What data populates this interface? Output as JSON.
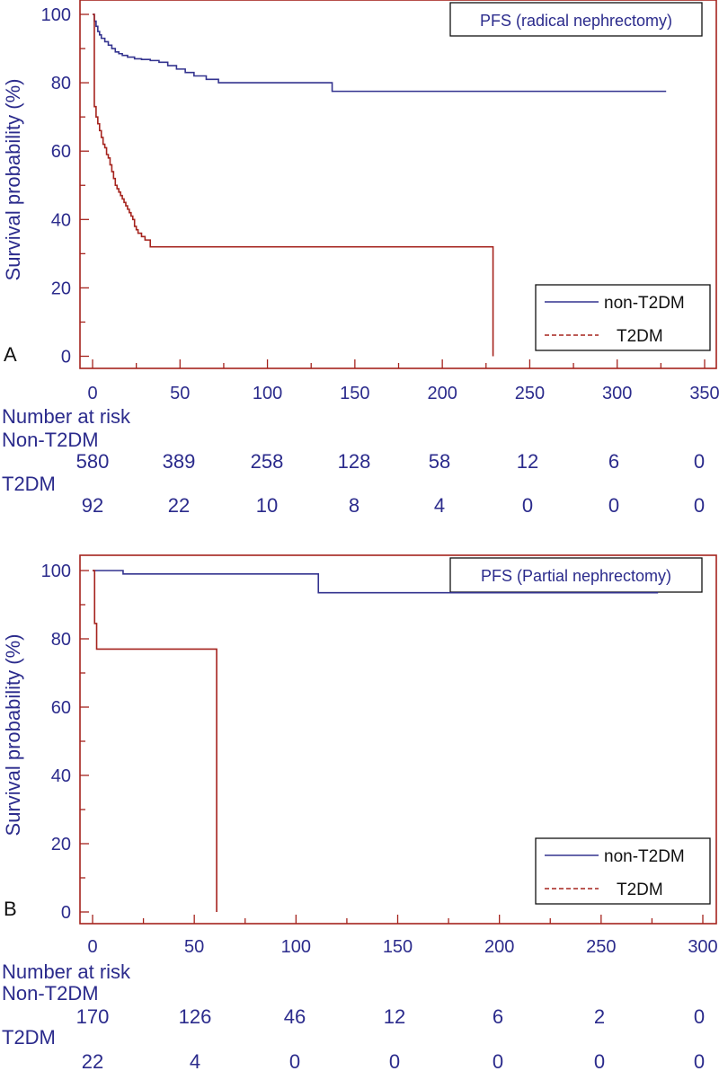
{
  "colors": {
    "non_t2dm": "#33338f",
    "t2dm": "#a5231d",
    "frame": "#a5231d",
    "text": "#2b2b8c"
  },
  "chart_data": [
    {
      "type": "line",
      "panel_letter": "A",
      "title": "PFS (radical nephrectomy)",
      "xlabel": "",
      "ylabel": "Survival probability (%)",
      "xlim": [
        -5,
        355
      ],
      "ylim": [
        -3,
        104
      ],
      "xticks": [
        0,
        50,
        100,
        150,
        200,
        250,
        300,
        350
      ],
      "xtick_labels": [
        "0",
        "50",
        "100",
        "150",
        "200",
        "250",
        "300",
        "350"
      ],
      "yticks": [
        0,
        20,
        40,
        60,
        80,
        100
      ],
      "ytick_labels": [
        "0",
        "20",
        "40",
        "60",
        "80",
        "100"
      ],
      "legend_position": "bottom-right",
      "legend_style": "non-T2DM solid, T2DM dashed",
      "series": [
        {
          "name": "non-T2DM",
          "step": true,
          "x": [
            0,
            1,
            2,
            3,
            4,
            5,
            7,
            9,
            11,
            13,
            15,
            17,
            20,
            24,
            28,
            33,
            38,
            43,
            48,
            53,
            58,
            65,
            72,
            137,
            328
          ],
          "y": [
            100,
            98,
            96.5,
            95,
            94,
            93,
            92,
            91,
            90,
            89,
            88.5,
            88,
            87.5,
            87,
            86.8,
            86.5,
            86,
            85,
            84,
            83,
            82,
            81,
            80,
            77.5,
            77.5
          ]
        },
        {
          "name": "T2DM",
          "step": true,
          "x": [
            0,
            1,
            2,
            3,
            4,
            5,
            6,
            7,
            8,
            9,
            10,
            11,
            12,
            13,
            14,
            15,
            16,
            17,
            18,
            19,
            20,
            21,
            22,
            23,
            24,
            25,
            26,
            28,
            30,
            33,
            229,
            229
          ],
          "y": [
            100,
            73,
            70,
            68,
            66,
            64,
            62,
            61,
            59,
            58,
            56,
            54,
            52,
            50,
            49,
            48,
            47,
            46,
            45,
            44,
            43,
            42,
            41,
            40,
            38,
            37,
            36,
            35,
            34,
            32,
            32,
            0
          ]
        }
      ],
      "risk_table": {
        "heading": "Number at risk",
        "groups": [
          {
            "label": "Non-T2DM",
            "values": [
              "580",
              "389",
              "258",
              "128",
              "58",
              "12",
              "6",
              "0"
            ]
          },
          {
            "label": "T2DM",
            "values": [
              "92",
              "22",
              "10",
              "8",
              "4",
              "0",
              "0",
              "0"
            ]
          }
        ]
      }
    },
    {
      "type": "line",
      "panel_letter": "B",
      "title": "PFS (Partial nephrectomy)",
      "xlabel": "",
      "ylabel": "Survival probability (%)",
      "xlim": [
        -5,
        303
      ],
      "ylim": [
        -3,
        104
      ],
      "xticks": [
        0,
        50,
        100,
        150,
        200,
        250,
        300
      ],
      "xtick_labels": [
        "0",
        "50",
        "100",
        "150",
        "200",
        "250",
        "300"
      ],
      "yticks": [
        0,
        20,
        40,
        60,
        80,
        100
      ],
      "ytick_labels": [
        "0",
        "20",
        "40",
        "60",
        "80",
        "100"
      ],
      "legend_position": "bottom-right",
      "legend_style": "non-T2DM solid, T2DM dashed",
      "series": [
        {
          "name": "non-T2DM",
          "step": true,
          "x": [
            0,
            2,
            15,
            111,
            278
          ],
          "y": [
            100,
            100,
            99,
            93.5,
            93.5
          ]
        },
        {
          "name": "T2DM",
          "step": true,
          "x": [
            0,
            1,
            2,
            61,
            61
          ],
          "y": [
            100,
            84.5,
            77,
            77,
            0
          ]
        }
      ],
      "risk_table": {
        "heading": "Number at risk",
        "groups": [
          {
            "label": "Non-T2DM",
            "values": [
              "170",
              "126",
              "46",
              "12",
              "6",
              "2",
              "0"
            ]
          },
          {
            "label": "T2DM",
            "values": [
              "22",
              "4",
              "0",
              "0",
              "0",
              "0",
              "0"
            ]
          }
        ]
      }
    }
  ]
}
